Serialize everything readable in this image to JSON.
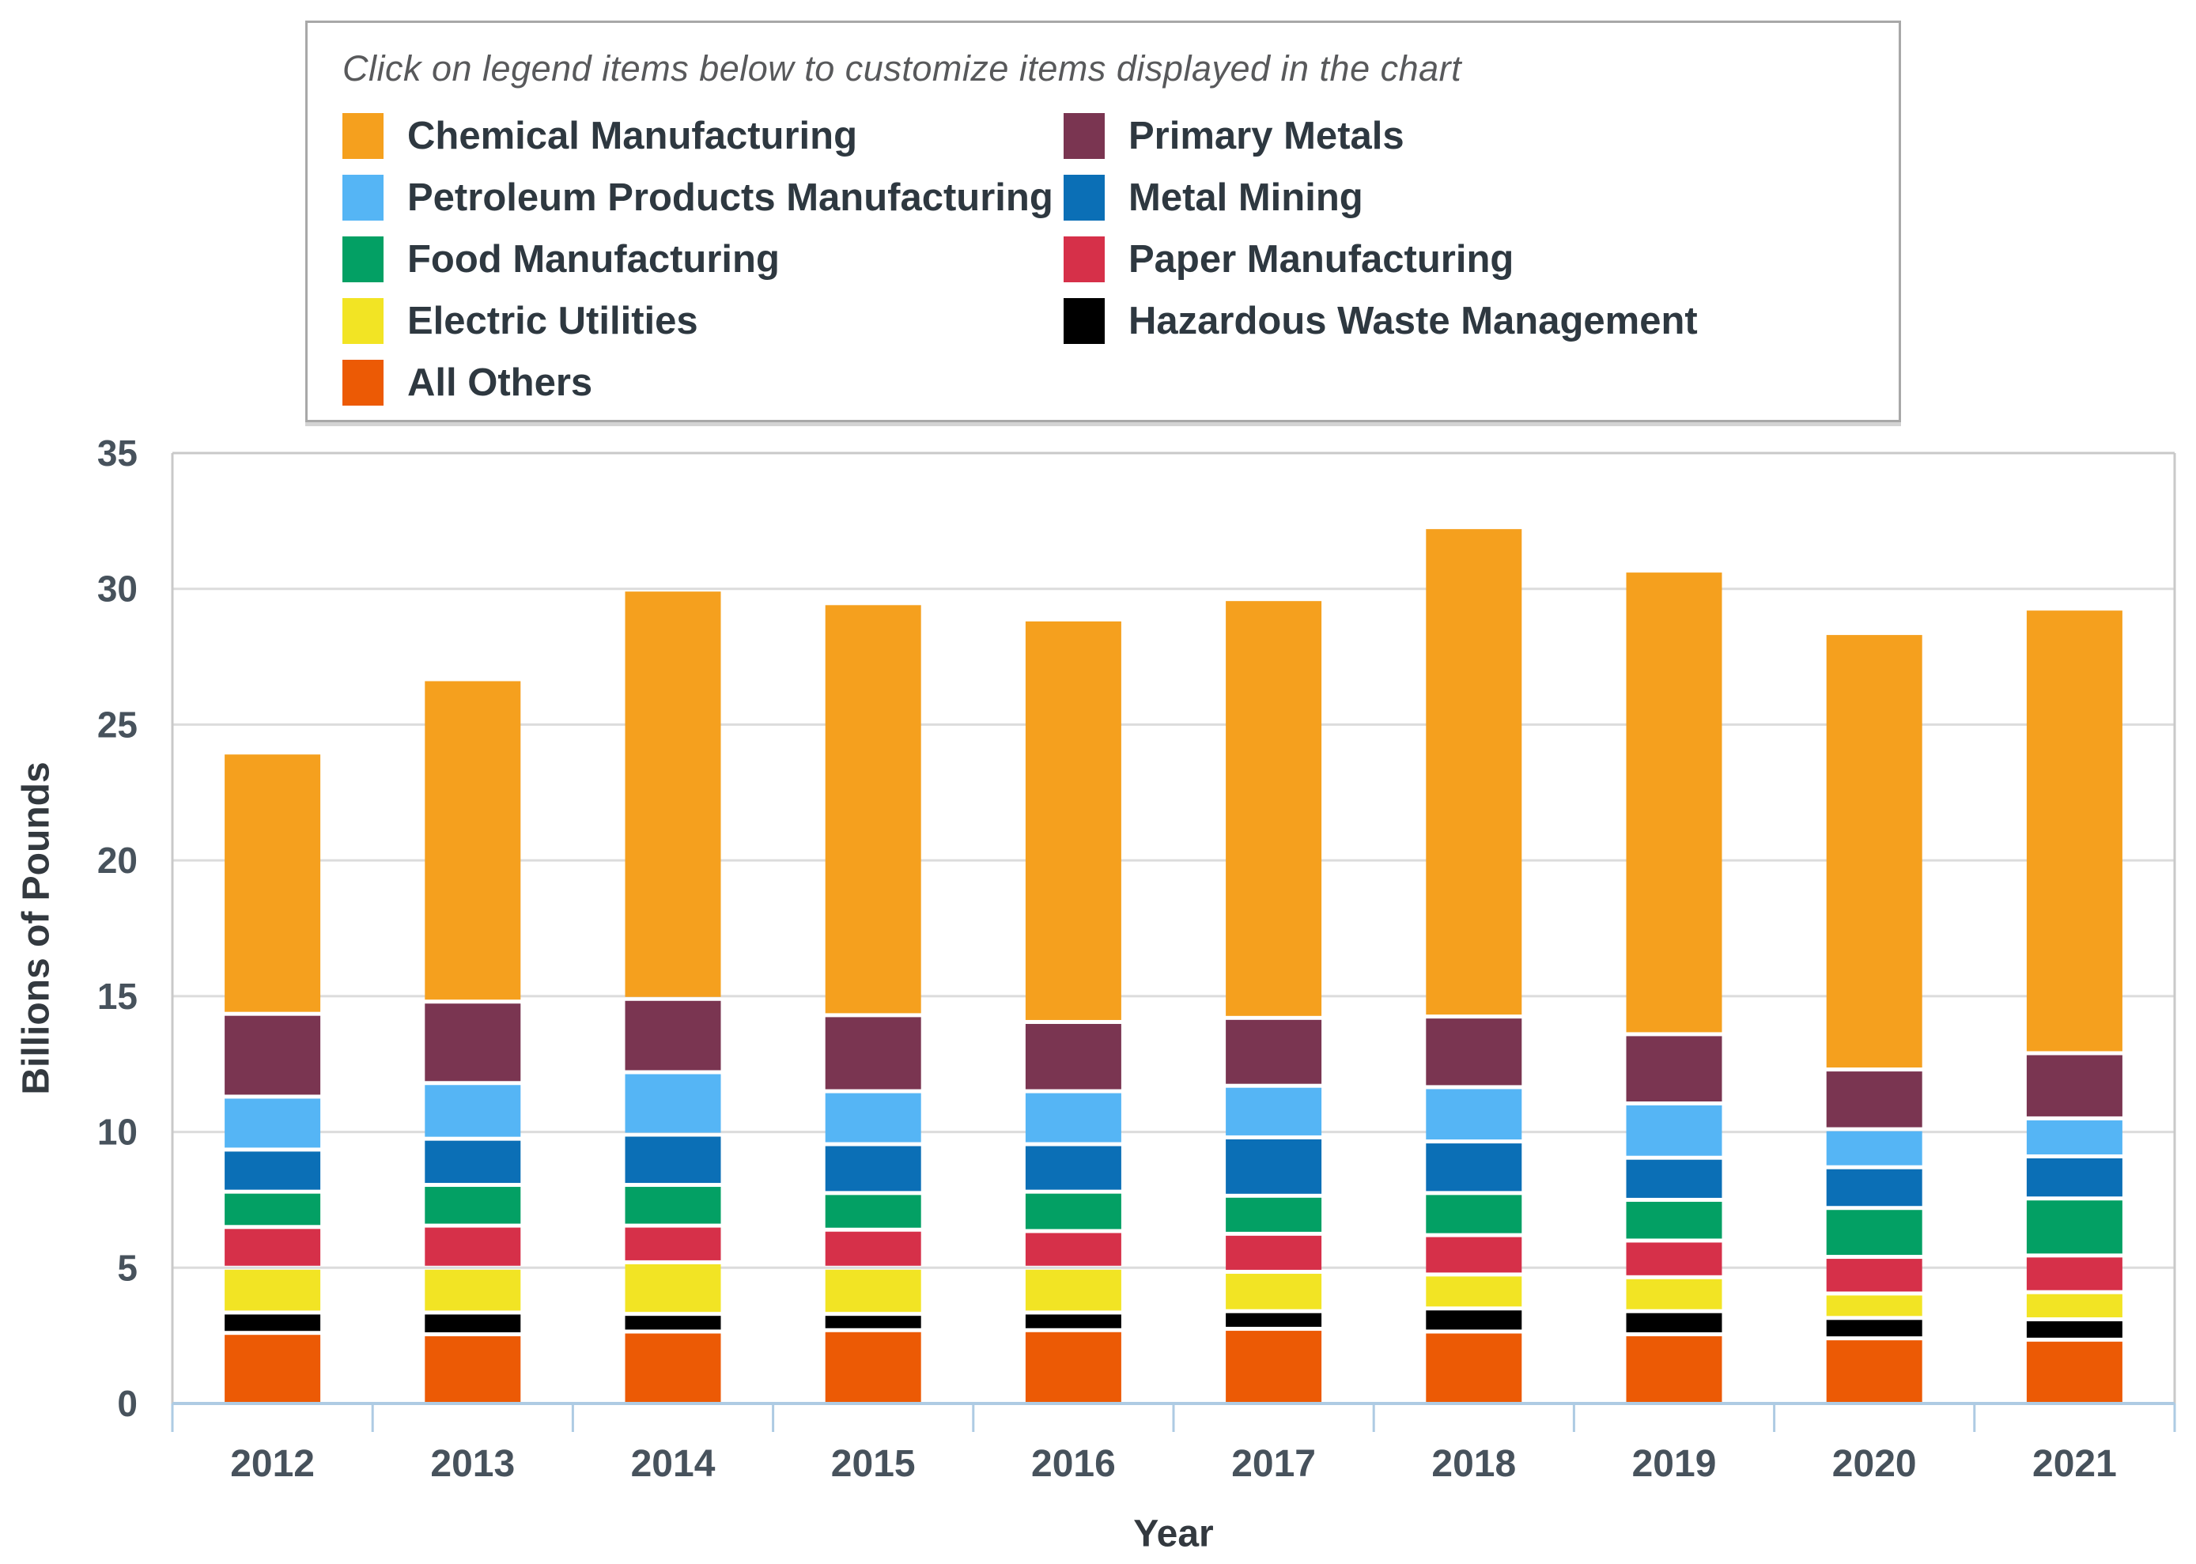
{
  "page": {
    "background": "#ffffff"
  },
  "legend": {
    "instruction": "Click on legend items below to customize items displayed in the chart",
    "columns": [
      [
        "chemical",
        "petroleum",
        "food",
        "electric",
        "all_others"
      ],
      [
        "primary_metals",
        "metal_mining",
        "paper",
        "hazardous"
      ]
    ]
  },
  "colors": {
    "gridline": "#dcdcdc",
    "plot_border": "#c9c9c9",
    "axis_line": "#aecbe3",
    "tick": "#aecbe3",
    "axis_text": "#47525c",
    "axis_title": "#33393f",
    "legend_text": "#2e3840",
    "instruction_text": "#58595b",
    "legend_border": "#a8a8a8"
  },
  "chart_data": {
    "type": "bar",
    "stacked": true,
    "title": "",
    "xlabel": "Year",
    "ylabel": "Billions of Pounds",
    "ylim": [
      0,
      35
    ],
    "ytick_step": 5,
    "ytick_labels": [
      "0",
      "5",
      "10",
      "15",
      "20",
      "25",
      "30",
      "35"
    ],
    "grid": "horizontal",
    "legend_position": "top",
    "categories": [
      "2012",
      "2013",
      "2014",
      "2015",
      "2016",
      "2017",
      "2018",
      "2019",
      "2020",
      "2021"
    ],
    "stack_order_bottom_to_top": [
      "all_others",
      "hazardous",
      "electric",
      "paper",
      "food",
      "metal_mining",
      "petroleum",
      "primary_metals",
      "chemical"
    ],
    "series": [
      {
        "key": "chemical",
        "name": "Chemical Manufacturing",
        "color": "#f5a01e",
        "values": [
          9.55,
          11.8,
          15.0,
          15.1,
          14.75,
          15.35,
          17.95,
          17.0,
          16.0,
          16.3
        ]
      },
      {
        "key": "primary_metals",
        "name": "Primary Metals",
        "color": "#7a3551",
        "values": [
          3.05,
          3.0,
          2.7,
          2.8,
          2.55,
          2.5,
          2.6,
          2.55,
          2.2,
          2.4
        ]
      },
      {
        "key": "petroleum",
        "name": "Petroleum Products Manufacturing",
        "color": "#55b5f5",
        "values": [
          1.95,
          2.05,
          2.3,
          1.95,
          1.95,
          1.9,
          2.0,
          2.0,
          1.4,
          1.4
        ]
      },
      {
        "key": "metal_mining",
        "name": "Metal Mining",
        "color": "#0b6fb6",
        "values": [
          1.55,
          1.7,
          1.85,
          1.8,
          1.75,
          2.15,
          1.9,
          1.55,
          1.5,
          1.55
        ]
      },
      {
        "key": "food",
        "name": "Food Manufacturing",
        "color": "#03a064",
        "values": [
          1.3,
          1.5,
          1.5,
          1.35,
          1.45,
          1.4,
          1.55,
          1.5,
          1.8,
          2.1
        ]
      },
      {
        "key": "paper",
        "name": "Paper Manufacturing",
        "color": "#d63049",
        "values": [
          1.5,
          1.55,
          1.35,
          1.4,
          1.35,
          1.4,
          1.45,
          1.35,
          1.35,
          1.35
        ]
      },
      {
        "key": "electric",
        "name": "Electric Utilities",
        "color": "#f2e424",
        "values": [
          1.65,
          1.65,
          1.9,
          1.7,
          1.65,
          1.45,
          1.25,
          1.25,
          0.9,
          1.0
        ]
      },
      {
        "key": "hazardous",
        "name": "Hazardous Waste Management",
        "color": "#000000",
        "values": [
          0.75,
          0.8,
          0.65,
          0.6,
          0.65,
          0.65,
          0.85,
          0.85,
          0.75,
          0.75
        ]
      },
      {
        "key": "all_others",
        "name": "All Others",
        "color": "#ec5a05",
        "values": [
          2.6,
          2.55,
          2.65,
          2.7,
          2.7,
          2.75,
          2.65,
          2.55,
          2.4,
          2.35
        ]
      }
    ]
  }
}
